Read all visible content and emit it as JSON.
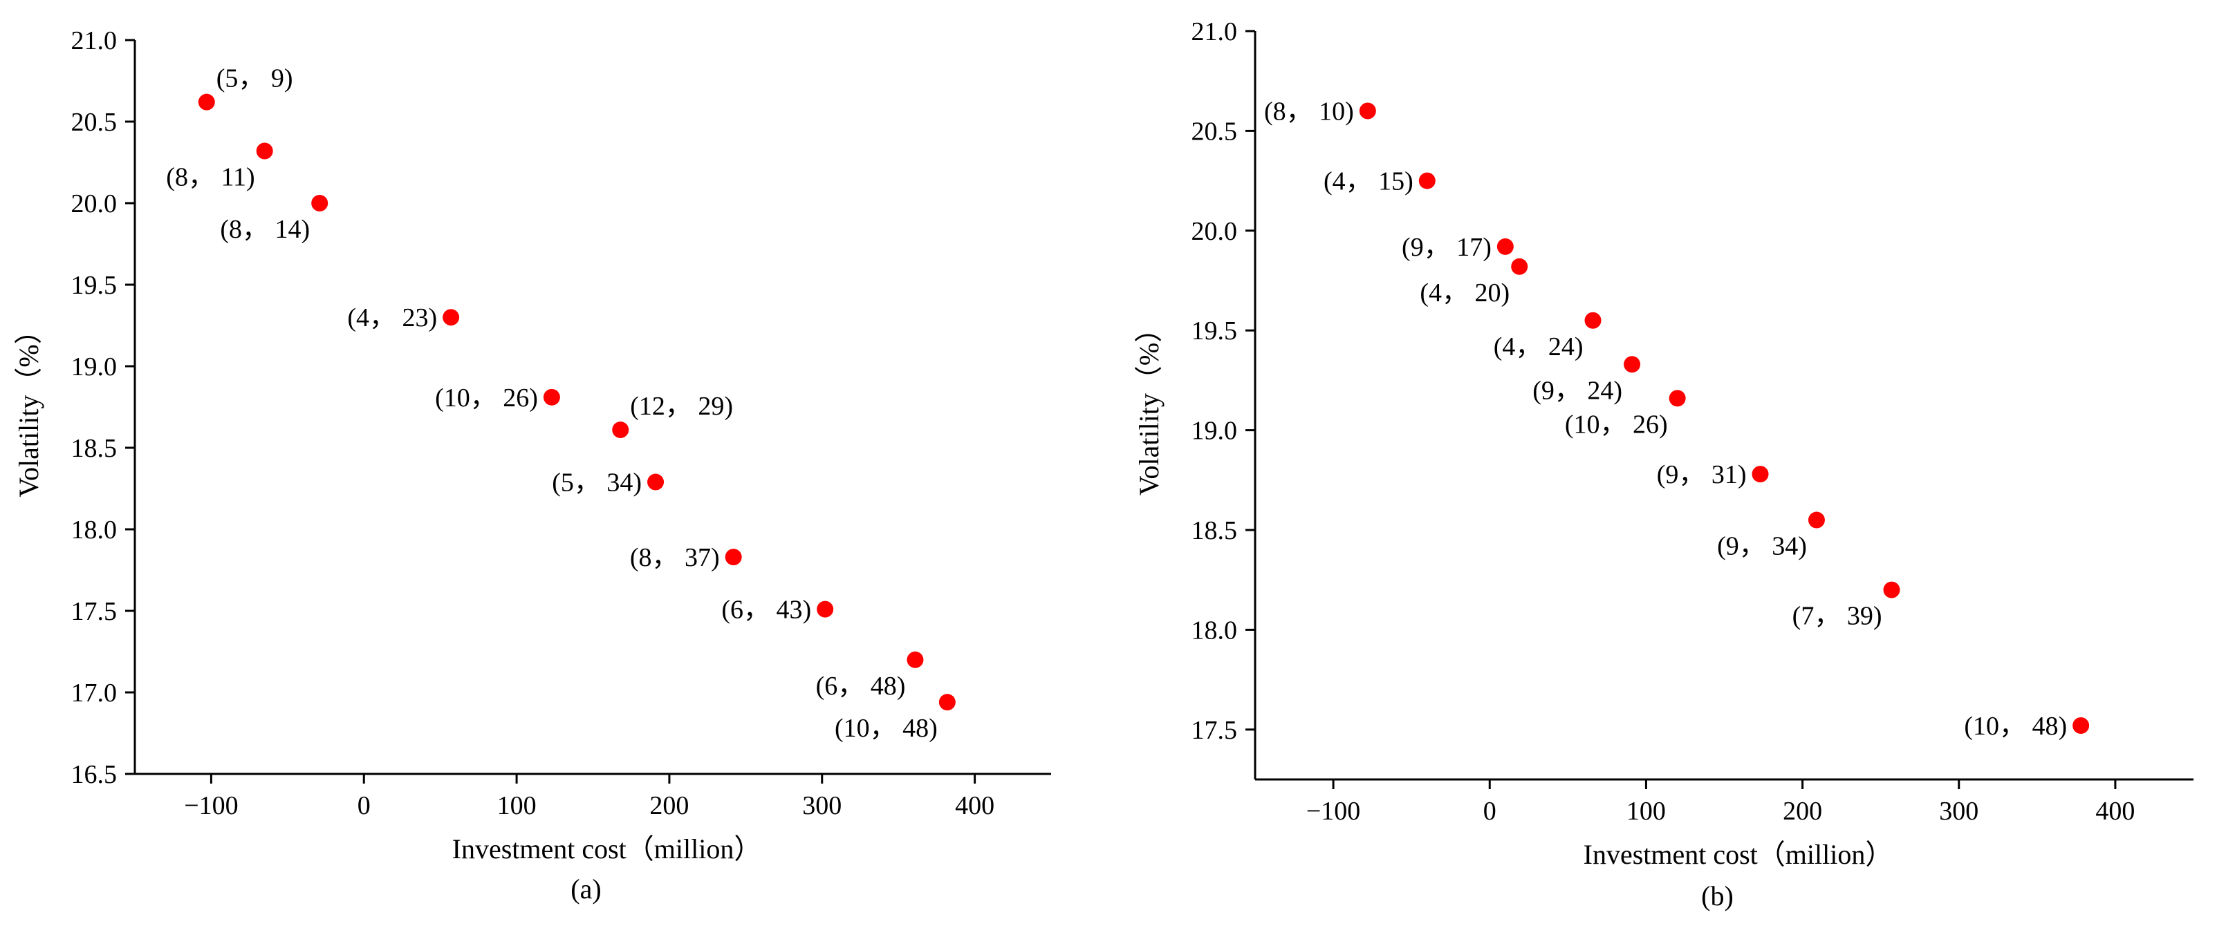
{
  "chart_data": [
    {
      "type": "scatter",
      "panel_label": "(a)",
      "xlabel": "Investment cost（million）",
      "ylabel": "Volatility（%）",
      "xlim": [
        -150,
        450
      ],
      "ylim": [
        16.5,
        21.0
      ],
      "xticks": [
        -100,
        0,
        100,
        200,
        300,
        400
      ],
      "yticks": [
        16.5,
        17.0,
        17.5,
        18.0,
        18.5,
        19.0,
        19.5,
        20.0,
        20.5,
        21.0
      ],
      "ytick_labels": [
        "16.5",
        "17.0",
        "17.5",
        "18.0",
        "18.5",
        "19.0",
        "19.5",
        "20.0",
        "20.5",
        "21.0"
      ],
      "marker_color": "#ff0000",
      "points": [
        {
          "x": -103,
          "y": 20.62,
          "label": "(5， 9)",
          "pos": "ne"
        },
        {
          "x": -65,
          "y": 20.32,
          "label": "(8， 11)",
          "pos": "sw"
        },
        {
          "x": -29,
          "y": 20.0,
          "label": "(8， 14)",
          "pos": "sw"
        },
        {
          "x": 57,
          "y": 19.3,
          "label": "(4， 23)",
          "pos": "w"
        },
        {
          "x": 123,
          "y": 18.81,
          "label": "(10， 26)",
          "pos": "w"
        },
        {
          "x": 168,
          "y": 18.61,
          "label": "(12， 29)",
          "pos": "ne"
        },
        {
          "x": 191,
          "y": 18.29,
          "label": "(5， 34)",
          "pos": "w"
        },
        {
          "x": 242,
          "y": 17.83,
          "label": "(8， 37)",
          "pos": "w"
        },
        {
          "x": 302,
          "y": 17.51,
          "label": "(6， 43)",
          "pos": "w"
        },
        {
          "x": 361,
          "y": 17.2,
          "label": "(6， 48)",
          "pos": "sw"
        },
        {
          "x": 382,
          "y": 16.94,
          "label": "(10， 48)",
          "pos": "sw"
        }
      ]
    },
    {
      "type": "scatter",
      "panel_label": "(b)",
      "xlabel": "Investment cost（million）",
      "ylabel": "Volatility（%）",
      "xlim": [
        -150,
        450
      ],
      "ylim": [
        17.25,
        21.0
      ],
      "xticks": [
        -100,
        0,
        100,
        200,
        300,
        400
      ],
      "yticks": [
        17.5,
        18.0,
        18.5,
        19.0,
        19.5,
        20.0,
        20.5,
        21.0
      ],
      "ytick_labels": [
        "17.5",
        "18.0",
        "18.5",
        "19.0",
        "19.5",
        "20.0",
        "20.5",
        "21.0"
      ],
      "marker_color": "#ff0000",
      "points": [
        {
          "x": -78,
          "y": 20.6,
          "label": "(8， 10)",
          "pos": "w"
        },
        {
          "x": -40,
          "y": 20.25,
          "label": "(4， 15)",
          "pos": "w"
        },
        {
          "x": 10,
          "y": 19.92,
          "label": "(9， 17)",
          "pos": "w"
        },
        {
          "x": 19,
          "y": 19.82,
          "label": "(4， 20)",
          "pos": "sw"
        },
        {
          "x": 66,
          "y": 19.55,
          "label": "(4， 24)",
          "pos": "sw"
        },
        {
          "x": 91,
          "y": 19.33,
          "label": "(9， 24)",
          "pos": "sw"
        },
        {
          "x": 120,
          "y": 19.16,
          "label": "(10， 26)",
          "pos": "sw"
        },
        {
          "x": 173,
          "y": 18.78,
          "label": "(9， 31)",
          "pos": "w"
        },
        {
          "x": 209,
          "y": 18.55,
          "label": "(9， 34)",
          "pos": "sw"
        },
        {
          "x": 257,
          "y": 18.2,
          "label": "(7， 39)",
          "pos": "sw"
        },
        {
          "x": 378,
          "y": 17.52,
          "label": "(10， 48)",
          "pos": "w"
        }
      ]
    }
  ]
}
